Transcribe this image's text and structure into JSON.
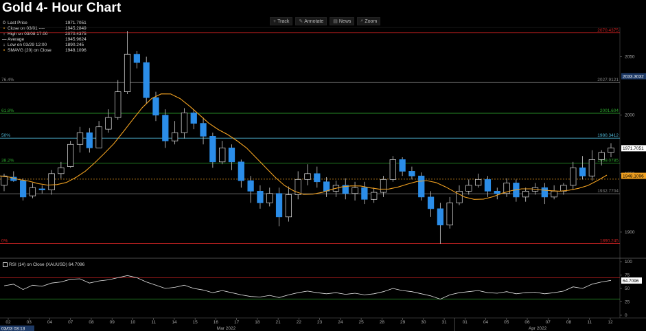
{
  "title": "Gold 4- Hour Chart",
  "toolbar": [
    {
      "label": "Track",
      "icon": "track-icon",
      "glyph": "+"
    },
    {
      "label": "Annotate",
      "icon": "annotate-icon",
      "glyph": "✎"
    },
    {
      "label": "News",
      "icon": "news-icon",
      "glyph": "▤"
    },
    {
      "label": "Zoom",
      "icon": "zoom-icon",
      "glyph": "⌕"
    }
  ],
  "legend": [
    {
      "label": "Last Price",
      "value": "1971.7051",
      "color": "#ffffff",
      "symbol": "0"
    },
    {
      "label": "Close on 03/01 ----",
      "value": "1945.2849",
      "color": "#f0a020",
      "symbol": "▪"
    },
    {
      "label": "High on 03/08 17:00",
      "value": "2070.4375",
      "color": "#ffffff",
      "symbol": "↑"
    },
    {
      "label": "Average",
      "value": "1945.9624",
      "color": "#ffffff",
      "symbol": "—"
    },
    {
      "label": "Low on 03/29 12:00",
      "value": "1890.245",
      "color": "#ffffff",
      "symbol": "↓"
    },
    {
      "label": "SMAVG (20)  on Close",
      "value": "1948.1096",
      "color": "#f0a020",
      "symbol": "▪"
    }
  ],
  "rsi_legend": {
    "label": "RSI (14)  on Close (XAUUSD)",
    "value": "64.7096"
  },
  "chart_data": {
    "type": "candlestick",
    "timeframe": "4-hour",
    "instrument": "XAUUSD",
    "price_axis": {
      "ylim": [
        1880,
        2075
      ],
      "ticks": [
        1900,
        1950,
        2000,
        2050
      ]
    },
    "x_labels": [
      "02",
      "03",
      "04",
      "07",
      "08",
      "09",
      "10",
      "11",
      "14",
      "15",
      "16",
      "17",
      "18",
      "21",
      "22",
      "23",
      "24",
      "25",
      "28",
      "29",
      "30",
      "31",
      "01",
      "04",
      "05",
      "06",
      "07",
      "08",
      "11",
      "12"
    ],
    "month_labels": [
      {
        "label": "Mar 2022",
        "at": 10.5
      },
      {
        "label": "Apr 2022",
        "at": 25.5
      }
    ],
    "month_divider_after": 21,
    "date_box": "03/03 03:13",
    "levels": [
      {
        "left_label": "",
        "right_label": "2070.4375",
        "value": 2070.4375,
        "color": "#cc2222"
      },
      {
        "left_label": "76.4%",
        "right_label": "2027.9121",
        "value": 2027.9121,
        "color": "#888888"
      },
      {
        "left_label": "61.8%",
        "right_label": "2001.604",
        "value": 2001.604,
        "color": "#2faa2f"
      },
      {
        "left_label": "50%",
        "right_label": "1980.3412",
        "value": 1980.3412,
        "color": "#4fb8d8"
      },
      {
        "left_label": "38.2%",
        "right_label": "1959.0785",
        "value": 1959.0785,
        "color": "#2faa2f"
      },
      {
        "left_label": "",
        "right_label": "1932.7704",
        "value": 1932.7704,
        "color": "#888888"
      },
      {
        "left_label": "0%",
        "right_label": "1890.245",
        "value": 1890.245,
        "color": "#cc2222"
      }
    ],
    "price_tags": [
      {
        "label": "2033.3032",
        "value": 2033.3032,
        "bg": "#1e3a66",
        "fg": "#ffffff"
      },
      {
        "label": "1971.7051",
        "value": 1971.7051,
        "bg": "#ffffff",
        "fg": "#000000"
      },
      {
        "label": "1948.1096",
        "value": 1948.1096,
        "bg": "#f0a020",
        "fg": "#000000"
      }
    ],
    "close_level": 1945.2849,
    "sma_last": 1948.1096,
    "candles": [
      [
        1940,
        1948,
        1935,
        1950
      ],
      [
        1947,
        1944,
        1943,
        1952
      ],
      [
        1944,
        1930,
        1927,
        1946
      ],
      [
        1931,
        1938,
        1929,
        1942
      ],
      [
        1937,
        1936,
        1933,
        1940
      ],
      [
        1936,
        1950,
        1932,
        1953
      ],
      [
        1950,
        1955,
        1946,
        1960
      ],
      [
        1956,
        1975,
        1955,
        1978
      ],
      [
        1975,
        1985,
        1968,
        1990
      ],
      [
        1985,
        1972,
        1968,
        1989
      ],
      [
        1972,
        1990,
        1972,
        1995
      ],
      [
        1988,
        1998,
        1985,
        2005
      ],
      [
        1998,
        2020,
        1996,
        2030
      ],
      [
        2020,
        2052,
        2018,
        2072
      ],
      [
        2052,
        2045,
        2040,
        2055
      ],
      [
        2045,
        2015,
        2010,
        2050
      ],
      [
        2015,
        2000,
        1995,
        2020
      ],
      [
        2000,
        1978,
        1972,
        2005
      ],
      [
        1978,
        1985,
        1975,
        1995
      ],
      [
        1985,
        2002,
        1980,
        2006
      ],
      [
        2002,
        1993,
        1988,
        2005
      ],
      [
        1993,
        1982,
        1975,
        1998
      ],
      [
        1982,
        1960,
        1955,
        1985
      ],
      [
        1960,
        1972,
        1958,
        1978
      ],
      [
        1972,
        1960,
        1953,
        1975
      ],
      [
        1960,
        1944,
        1938,
        1962
      ],
      [
        1944,
        1935,
        1925,
        1948
      ],
      [
        1935,
        1925,
        1920,
        1940
      ],
      [
        1925,
        1933,
        1922,
        1938
      ],
      [
        1933,
        1913,
        1905,
        1938
      ],
      [
        1913,
        1932,
        1909,
        1939
      ],
      [
        1932,
        1945,
        1928,
        1952
      ],
      [
        1945,
        1950,
        1940,
        1958
      ],
      [
        1950,
        1943,
        1938,
        1956
      ],
      [
        1943,
        1935,
        1930,
        1947
      ],
      [
        1935,
        1940,
        1930,
        1944
      ],
      [
        1940,
        1933,
        1928,
        1946
      ],
      [
        1933,
        1938,
        1927,
        1943
      ],
      [
        1938,
        1928,
        1924,
        1943
      ],
      [
        1928,
        1934,
        1925,
        1938
      ],
      [
        1934,
        1945,
        1930,
        1948
      ],
      [
        1945,
        1962,
        1943,
        1965
      ],
      [
        1962,
        1952,
        1948,
        1964
      ],
      [
        1952,
        1948,
        1945,
        1956
      ],
      [
        1948,
        1930,
        1927,
        1951
      ],
      [
        1930,
        1920,
        1913,
        1935
      ],
      [
        1920,
        1906,
        1890,
        1925
      ],
      [
        1906,
        1925,
        1903,
        1930
      ],
      [
        1925,
        1935,
        1923,
        1940
      ],
      [
        1935,
        1940,
        1932,
        1945
      ],
      [
        1940,
        1945,
        1938,
        1950
      ],
      [
        1945,
        1935,
        1930,
        1948
      ],
      [
        1935,
        1933,
        1928,
        1938
      ],
      [
        1933,
        1942,
        1930,
        1946
      ],
      [
        1942,
        1930,
        1926,
        1945
      ],
      [
        1930,
        1935,
        1926,
        1938
      ],
      [
        1935,
        1938,
        1932,
        1942
      ],
      [
        1938,
        1930,
        1924,
        1942
      ],
      [
        1930,
        1935,
        1928,
        1940
      ],
      [
        1935,
        1940,
        1932,
        1942
      ],
      [
        1940,
        1955,
        1936,
        1960
      ],
      [
        1955,
        1948,
        1945,
        1965
      ],
      [
        1948,
        1962,
        1944,
        1970
      ],
      [
        1962,
        1968,
        1957,
        1970
      ],
      [
        1968,
        1972,
        1964,
        1976
      ]
    ],
    "rsi": {
      "ylim": [
        0,
        100
      ],
      "ticks": [
        0,
        25,
        50,
        75,
        100
      ],
      "overbought": 70,
      "oversold": 30,
      "last": 64.7096,
      "values": [
        55,
        58,
        48,
        56,
        54,
        60,
        62,
        67,
        68,
        60,
        64,
        66,
        70,
        74,
        70,
        62,
        56,
        50,
        52,
        56,
        50,
        47,
        42,
        46,
        42,
        38,
        35,
        34,
        37,
        33,
        38,
        42,
        45,
        42,
        40,
        42,
        39,
        41,
        38,
        40,
        44,
        50,
        46,
        44,
        40,
        36,
        30,
        38,
        42,
        44,
        46,
        42,
        41,
        44,
        40,
        42,
        43,
        40,
        42,
        45,
        53,
        50,
        58,
        62,
        65
      ]
    }
  }
}
